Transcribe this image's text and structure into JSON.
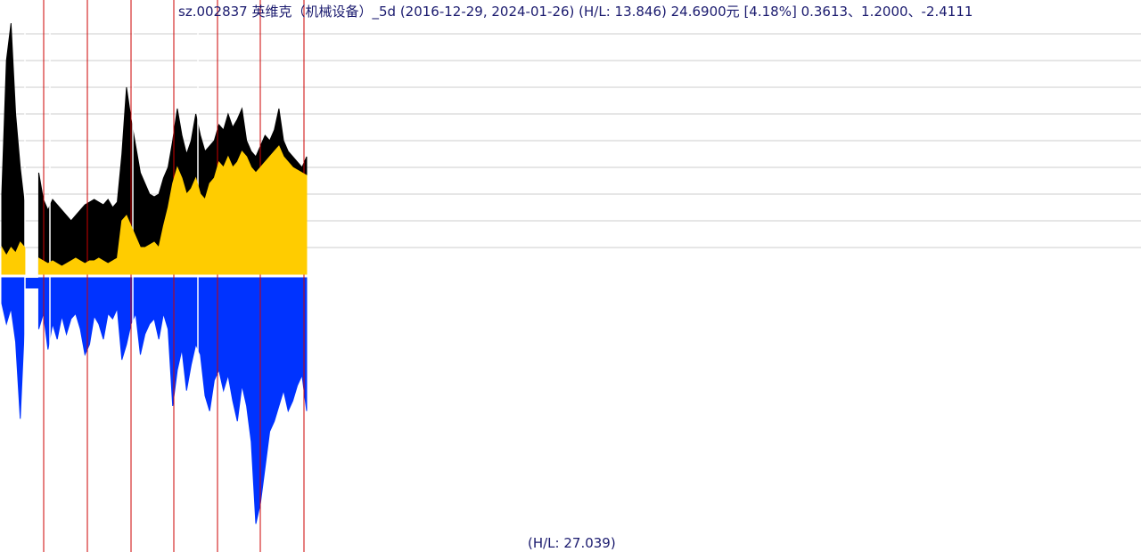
{
  "chart_data": {
    "type": "area",
    "title": "sz.002837 英维克（机械设备）_5d (2016-12-29, 2024-01-26) (H/L: 13.846) 24.6900元 [4.18%]  0.3613、1.2000、-2.4111",
    "footer": "(H/L: 27.039)",
    "start_date": "2016-12-29",
    "end_date": "2024-01-26",
    "hl_upper": 13.846,
    "hl_lower": 27.039,
    "last_price": 24.69,
    "last_change_pct": 4.18,
    "stats": [
      0.3613,
      1.2,
      -2.4111
    ],
    "grid": true,
    "year_markers": [
      "2018",
      "2019",
      "2020",
      "2021",
      "2022",
      "2023",
      "2024"
    ],
    "upper_series": {
      "name": "price",
      "values": [
        0.3,
        0.8,
        0.94,
        0.6,
        0.4,
        0.25,
        null,
        null,
        0.38,
        0.28,
        0.24,
        0.28,
        0.26,
        0.24,
        0.22,
        0.2,
        0.22,
        0.24,
        0.26,
        0.27,
        0.28,
        0.27,
        0.26,
        0.28,
        0.25,
        0.27,
        0.45,
        0.7,
        0.58,
        0.48,
        0.38,
        0.34,
        0.3,
        0.29,
        0.3,
        0.36,
        0.4,
        0.5,
        0.62,
        0.52,
        0.45,
        0.5,
        0.6,
        0.52,
        0.46,
        0.48,
        0.5,
        0.56,
        0.54,
        0.6,
        0.55,
        0.58,
        0.62,
        0.5,
        0.46,
        0.44,
        0.48,
        0.52,
        0.5,
        0.54,
        0.62,
        0.5,
        0.46,
        0.44,
        0.42,
        0.4,
        0.44
      ],
      "fill_values": [
        0.1,
        0.07,
        0.1,
        0.08,
        0.12,
        0.1,
        null,
        null,
        0.06,
        0.05,
        0.04,
        0.05,
        0.04,
        0.03,
        0.04,
        0.05,
        0.06,
        0.05,
        0.04,
        0.05,
        0.05,
        0.06,
        0.05,
        0.04,
        0.05,
        0.06,
        0.2,
        0.22,
        0.18,
        0.14,
        0.1,
        0.1,
        0.11,
        0.12,
        0.1,
        0.18,
        0.25,
        0.34,
        0.4,
        0.36,
        0.3,
        0.32,
        0.36,
        0.3,
        0.28,
        0.34,
        0.36,
        0.42,
        0.4,
        0.44,
        0.4,
        0.42,
        0.46,
        0.44,
        0.4,
        0.38,
        0.4,
        0.42,
        0.44,
        0.46,
        0.48,
        0.44,
        0.42,
        0.4,
        0.39,
        0.38,
        0.37
      ]
    },
    "lower_series": {
      "name": "volume",
      "values": [
        0.1,
        0.18,
        0.12,
        0.25,
        0.55,
        0.15,
        null,
        null,
        0.2,
        0.14,
        0.28,
        0.18,
        0.24,
        0.15,
        0.22,
        0.16,
        0.14,
        0.2,
        0.3,
        0.26,
        0.15,
        0.18,
        0.24,
        0.14,
        0.16,
        0.12,
        0.32,
        0.26,
        0.18,
        0.14,
        0.3,
        0.22,
        0.18,
        0.16,
        0.24,
        0.14,
        0.2,
        0.5,
        0.36,
        0.28,
        0.44,
        0.34,
        0.26,
        0.3,
        0.46,
        0.52,
        0.4,
        0.36,
        0.44,
        0.38,
        0.48,
        0.56,
        0.42,
        0.5,
        0.64,
        0.96,
        0.88,
        0.74,
        0.6,
        0.56,
        0.5,
        0.44,
        0.52,
        0.48,
        0.42,
        0.38,
        0.52
      ]
    }
  }
}
